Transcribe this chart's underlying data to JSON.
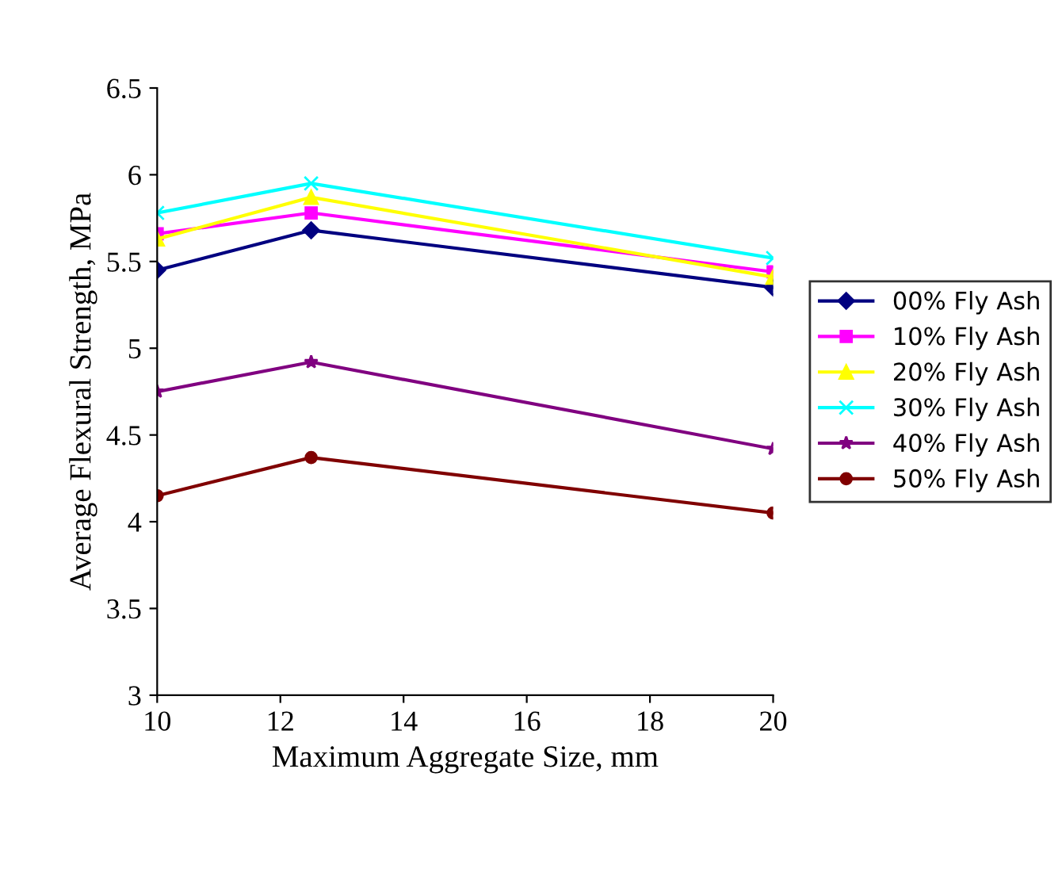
{
  "chart_data": {
    "type": "line",
    "xlabel": "Maximum Aggregate Size, mm",
    "ylabel": "Average Flexural Strength, MPa",
    "x": [
      10,
      12.5,
      20
    ],
    "xlim": [
      10,
      20
    ],
    "xticks": [
      10,
      12,
      14,
      16,
      18,
      20
    ],
    "ylim": [
      3,
      6.5
    ],
    "yticks": [
      3,
      3.5,
      4,
      4.5,
      5,
      5.5,
      6,
      6.5
    ],
    "grid": false,
    "legend": "right",
    "line_style": "solid",
    "series": [
      {
        "name": "00% Fly Ash",
        "color": "#000080",
        "marker": "diamond",
        "values": [
          5.45,
          5.68,
          5.35
        ]
      },
      {
        "name": "10% Fly Ash",
        "color": "#ff00ff",
        "marker": "square",
        "values": [
          5.66,
          5.78,
          5.44
        ]
      },
      {
        "name": "20% Fly Ash",
        "color": "#ffff00",
        "marker": "triangle",
        "values": [
          5.63,
          5.87,
          5.41
        ]
      },
      {
        "name": "30% Fly Ash",
        "color": "#00ffff",
        "marker": "cross",
        "values": [
          5.78,
          5.95,
          5.52
        ]
      },
      {
        "name": "40% Fly Ash",
        "color": "#800080",
        "marker": "star",
        "values": [
          4.75,
          4.92,
          4.42
        ]
      },
      {
        "name": "50% Fly Ash",
        "color": "#800000",
        "marker": "circle",
        "values": [
          4.15,
          4.37,
          4.05
        ]
      }
    ]
  }
}
